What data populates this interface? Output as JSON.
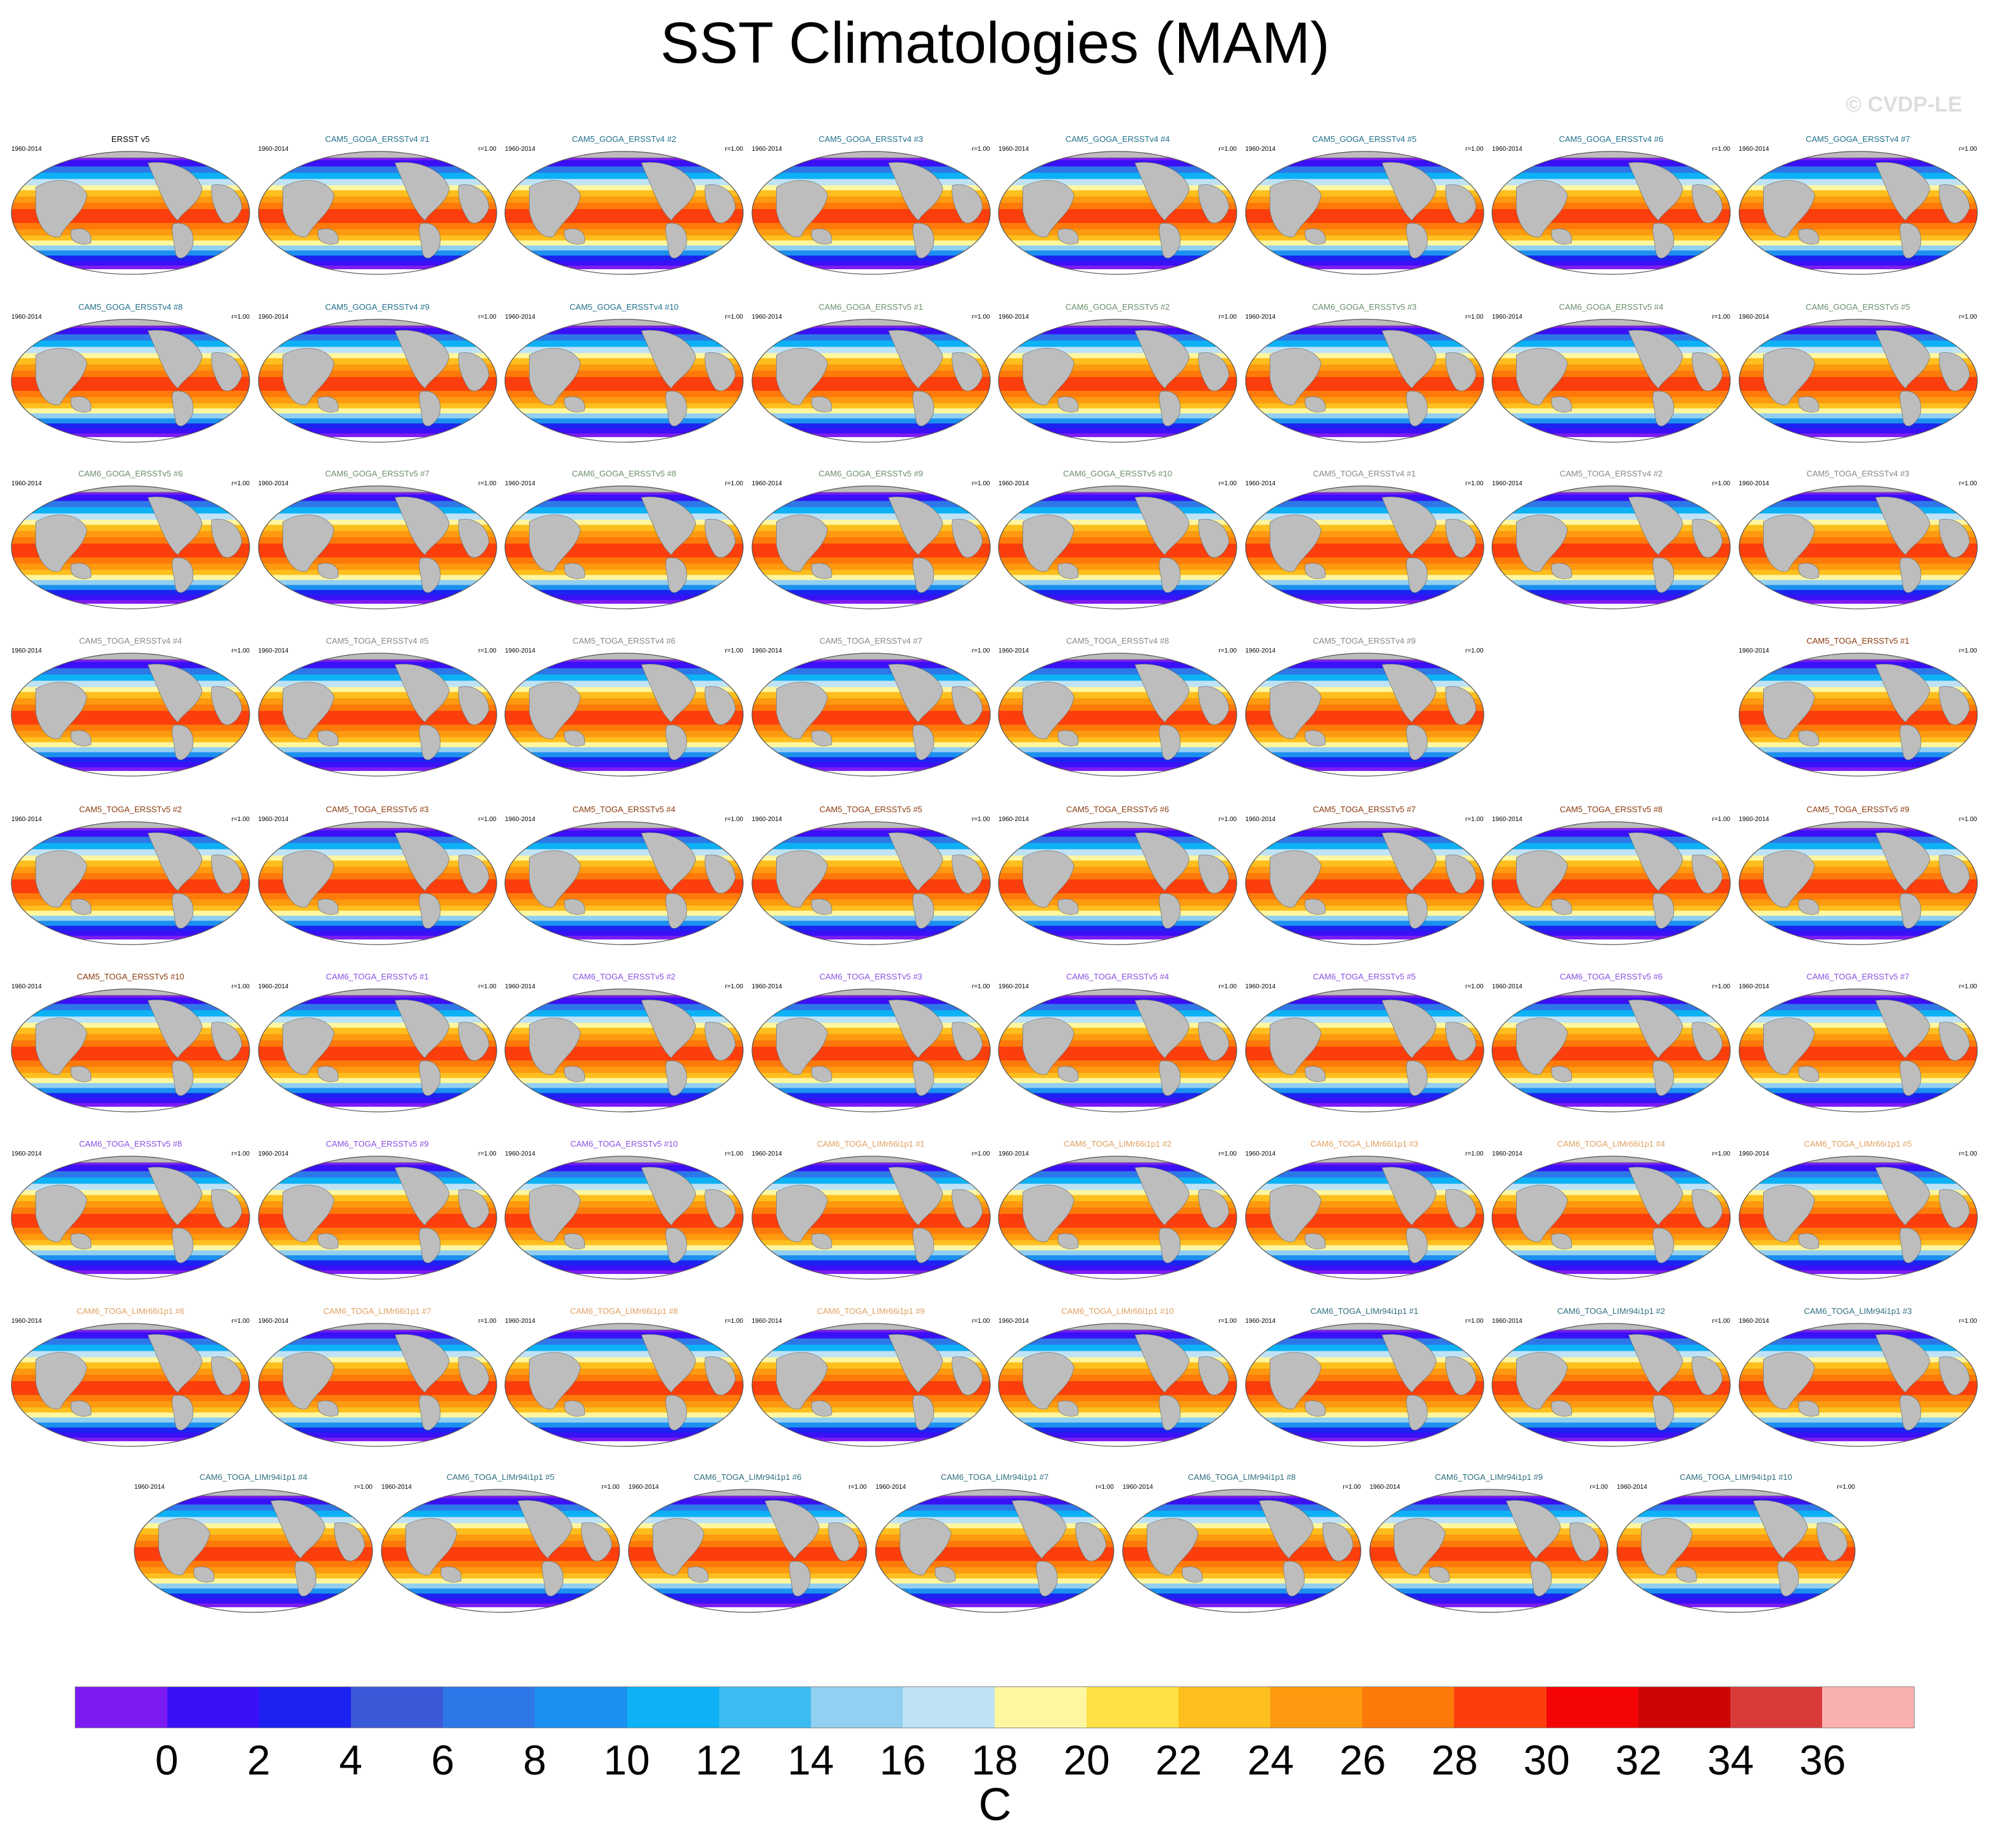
{
  "title": "SST Climatologies (MAM)",
  "copyright": "© CVDP-LE",
  "panel_period": "1960-2014",
  "panel_corr": "r=1.00",
  "panels": [
    {
      "label": "ERSST v5",
      "color": "#000000",
      "corr": ""
    },
    {
      "label": "CAM5_GOGA_ERSSTv4 #1",
      "color": "#1f6f8b"
    },
    {
      "label": "CAM5_GOGA_ERSSTv4 #2",
      "color": "#1f6f8b"
    },
    {
      "label": "CAM5_GOGA_ERSSTv4 #3",
      "color": "#1f6f8b"
    },
    {
      "label": "CAM5_GOGA_ERSSTv4 #4",
      "color": "#1f6f8b"
    },
    {
      "label": "CAM5_GOGA_ERSSTv4 #5",
      "color": "#1f6f8b"
    },
    {
      "label": "CAM5_GOGA_ERSSTv4 #6",
      "color": "#1f6f8b"
    },
    {
      "label": "CAM5_GOGA_ERSSTv4 #7",
      "color": "#1f6f8b"
    },
    {
      "label": "CAM5_GOGA_ERSSTv4 #8",
      "color": "#1f6f8b"
    },
    {
      "label": "CAM5_GOGA_ERSSTv4 #9",
      "color": "#1f6f8b"
    },
    {
      "label": "CAM5_GOGA_ERSSTv4 #10",
      "color": "#1f6f8b"
    },
    {
      "label": "CAM6_GOGA_ERSSTv5 #1",
      "color": "#6b8e6b"
    },
    {
      "label": "CAM6_GOGA_ERSSTv5 #2",
      "color": "#6b8e6b"
    },
    {
      "label": "CAM6_GOGA_ERSSTv5 #3",
      "color": "#6b8e6b"
    },
    {
      "label": "CAM6_GOGA_ERSSTv5 #4",
      "color": "#6b8e6b"
    },
    {
      "label": "CAM6_GOGA_ERSSTv5 #5",
      "color": "#6b8e6b"
    },
    {
      "label": "CAM6_GOGA_ERSSTv5 #6",
      "color": "#6b8e6b"
    },
    {
      "label": "CAM6_GOGA_ERSSTv5 #7",
      "color": "#6b8e6b"
    },
    {
      "label": "CAM6_GOGA_ERSSTv5 #8",
      "color": "#6b8e6b"
    },
    {
      "label": "CAM6_GOGA_ERSSTv5 #9",
      "color": "#6b8e6b"
    },
    {
      "label": "CAM6_GOGA_ERSSTv5 #10",
      "color": "#6b8e6b"
    },
    {
      "label": "CAM5_TOGA_ERSSTv4 #1",
      "color": "#888888"
    },
    {
      "label": "CAM5_TOGA_ERSSTv4 #2",
      "color": "#888888"
    },
    {
      "label": "CAM5_TOGA_ERSSTv4 #3",
      "color": "#888888"
    },
    {
      "label": "CAM5_TOGA_ERSSTv4 #4",
      "color": "#888888"
    },
    {
      "label": "CAM5_TOGA_ERSSTv4 #5",
      "color": "#888888"
    },
    {
      "label": "CAM5_TOGA_ERSSTv4 #6",
      "color": "#888888"
    },
    {
      "label": "CAM5_TOGA_ERSSTv4 #7",
      "color": "#888888"
    },
    {
      "label": "CAM5_TOGA_ERSSTv4 #8",
      "color": "#888888"
    },
    {
      "label": "CAM5_TOGA_ERSSTv4 #9",
      "color": "#888888"
    },
    {
      "label": "CAM5_TOGA_ERSSTv5 #1",
      "color": "#8b3a0f"
    },
    {
      "label": "CAM5_TOGA_ERSSTv5 #2",
      "color": "#8b3a0f"
    },
    {
      "label": "CAM5_TOGA_ERSSTv5 #3",
      "color": "#8b3a0f"
    },
    {
      "label": "CAM5_TOGA_ERSSTv5 #4",
      "color": "#8b3a0f"
    },
    {
      "label": "CAM5_TOGA_ERSSTv5 #5",
      "color": "#8b3a0f"
    },
    {
      "label": "CAM5_TOGA_ERSSTv5 #6",
      "color": "#8b3a0f"
    },
    {
      "label": "CAM5_TOGA_ERSSTv5 #7",
      "color": "#8b3a0f"
    },
    {
      "label": "CAM5_TOGA_ERSSTv5 #8",
      "color": "#8b3a0f"
    },
    {
      "label": "CAM5_TOGA_ERSSTv5 #9",
      "color": "#8b3a0f"
    },
    {
      "label": "CAM5_TOGA_ERSSTv5 #10",
      "color": "#8b3a0f"
    },
    {
      "label": "CAM6_TOGA_ERSSTv5 #1",
      "color": "#8a4fe0"
    },
    {
      "label": "CAM6_TOGA_ERSSTv5 #2",
      "color": "#8a4fe0"
    },
    {
      "label": "CAM6_TOGA_ERSSTv5 #3",
      "color": "#8a4fe0"
    },
    {
      "label": "CAM6_TOGA_ERSSTv5 #4",
      "color": "#8a4fe0"
    },
    {
      "label": "CAM6_TOGA_ERSSTv5 #5",
      "color": "#8a4fe0"
    },
    {
      "label": "CAM6_TOGA_ERSSTv5 #6",
      "color": "#8a4fe0"
    },
    {
      "label": "CAM6_TOGA_ERSSTv5 #7",
      "color": "#8a4fe0"
    },
    {
      "label": "CAM6_TOGA_ERSSTv5 #8",
      "color": "#8a4fe0"
    },
    {
      "label": "CAM6_TOGA_ERSSTv5 #9",
      "color": "#8a4fe0"
    },
    {
      "label": "CAM6_TOGA_ERSSTv5 #10",
      "color": "#8a4fe0"
    },
    {
      "label": "CAM6_TOGA_LIMr66i1p1 #1",
      "color": "#e0a060"
    },
    {
      "label": "CAM6_TOGA_LIMr66i1p1 #2",
      "color": "#e0a060"
    },
    {
      "label": "CAM6_TOGA_LIMr66i1p1 #3",
      "color": "#e0a060"
    },
    {
      "label": "CAM6_TOGA_LIMr66i1p1 #4",
      "color": "#e0a060"
    },
    {
      "label": "CAM6_TOGA_LIMr66i1p1 #5",
      "color": "#e0a060"
    },
    {
      "label": "CAM6_TOGA_LIMr66i1p1 #6",
      "color": "#e0a060"
    },
    {
      "label": "CAM6_TOGA_LIMr66i1p1 #7",
      "color": "#e0a060"
    },
    {
      "label": "CAM6_TOGA_LIMr66i1p1 #8",
      "color": "#e0a060"
    },
    {
      "label": "CAM6_TOGA_LIMr66i1p1 #9",
      "color": "#e0a060"
    },
    {
      "label": "CAM6_TOGA_LIMr66i1p1 #10",
      "color": "#e0a060"
    },
    {
      "label": "CAM6_TOGA_LIMr94i1p1 #1",
      "color": "#2f6f7f"
    },
    {
      "label": "CAM6_TOGA_LIMr94i1p1 #2",
      "color": "#2f6f7f"
    },
    {
      "label": "CAM6_TOGA_LIMr94i1p1 #3",
      "color": "#2f6f7f"
    },
    {
      "label": "CAM6_TOGA_LIMr94i1p1 #4",
      "color": "#2f6f7f"
    },
    {
      "label": "CAM6_TOGA_LIMr94i1p1 #5",
      "color": "#2f6f7f"
    },
    {
      "label": "CAM6_TOGA_LIMr94i1p1 #6",
      "color": "#2f6f7f"
    },
    {
      "label": "CAM6_TOGA_LIMr94i1p1 #7",
      "color": "#2f6f7f"
    },
    {
      "label": "CAM6_TOGA_LIMr94i1p1 #8",
      "color": "#2f6f7f"
    },
    {
      "label": "CAM6_TOGA_LIMr94i1p1 #9",
      "color": "#2f6f7f"
    },
    {
      "label": "CAM6_TOGA_LIMr94i1p1 #10",
      "color": "#2f6f7f"
    }
  ],
  "colorbar": {
    "colors": [
      "#7d1cf2",
      "#3a10f7",
      "#1c23f0",
      "#3a59d8",
      "#2e77e8",
      "#1b90f0",
      "#0db1f5",
      "#3dbcf2",
      "#92cff0",
      "#bfe2f5",
      "#fff7a0",
      "#fde046",
      "#fdbf1e",
      "#fd9a10",
      "#fd7a0a",
      "#fb3e0c",
      "#f50405",
      "#cc0505",
      "#d93a3a",
      "#fbb0b0"
    ],
    "labels": [
      "0",
      "2",
      "4",
      "6",
      "8",
      "10",
      "12",
      "14",
      "16",
      "18",
      "20",
      "22",
      "24",
      "26",
      "28",
      "30",
      "32",
      "34",
      "36"
    ],
    "units": "C"
  }
}
